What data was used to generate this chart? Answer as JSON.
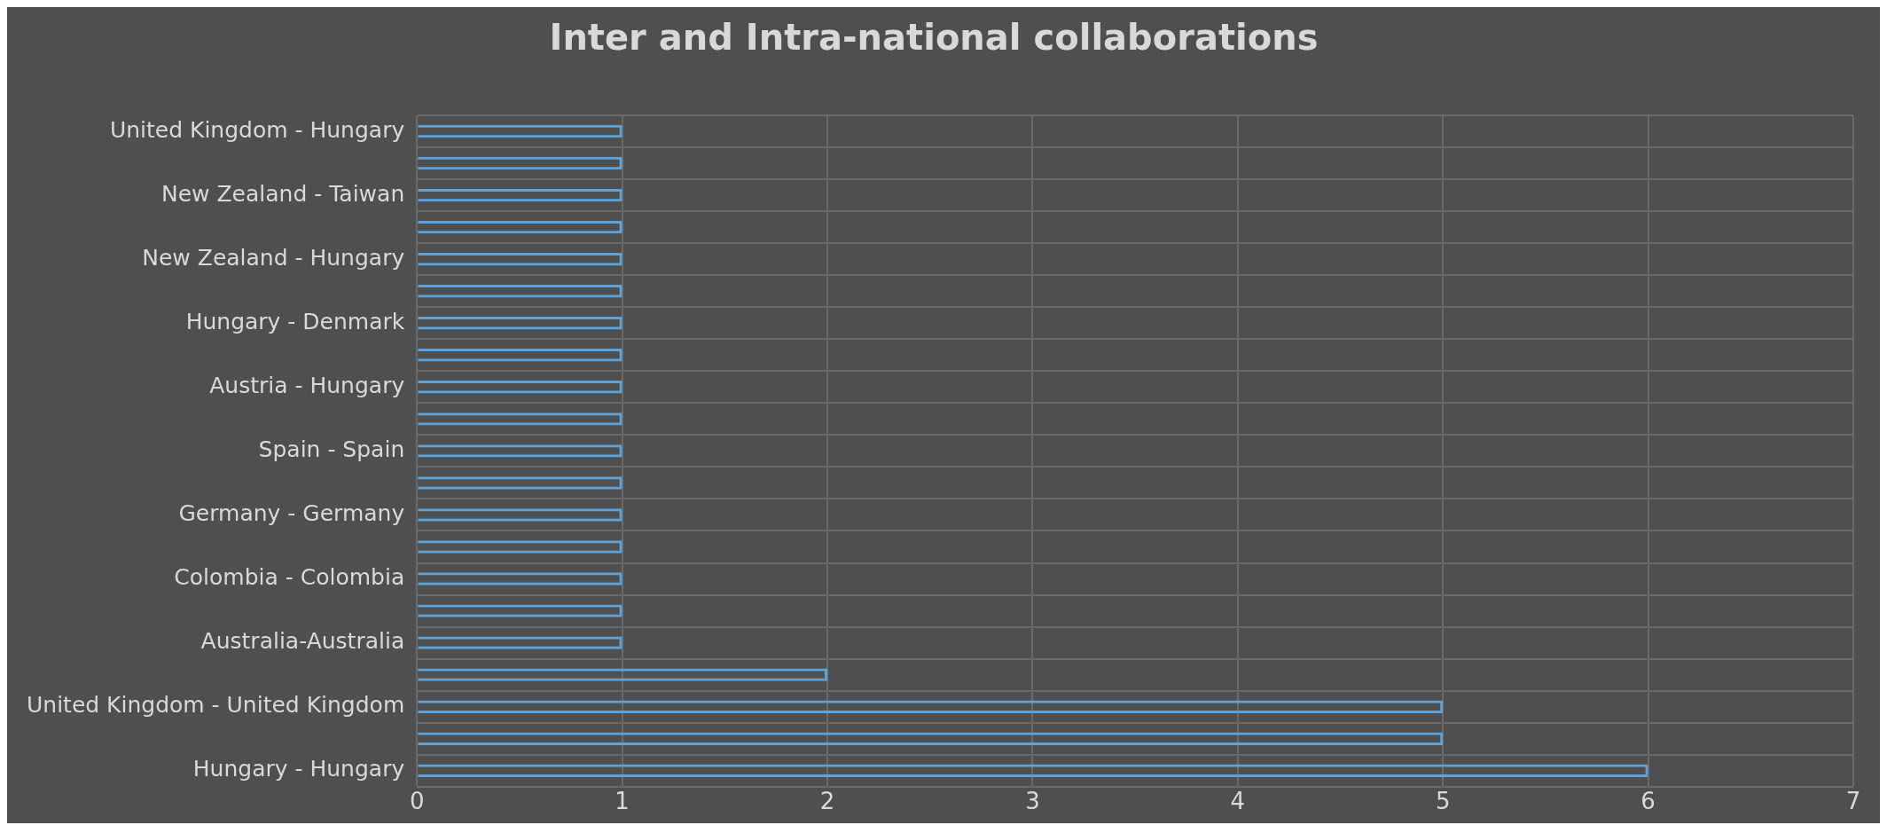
{
  "chart_data": {
    "type": "bar",
    "orientation": "horizontal",
    "title": "Inter and Intra-national collaborations",
    "categories": [
      "United Kingdom - Hungary",
      null,
      "New Zealand - Taiwan",
      null,
      "New Zealand - Hungary",
      null,
      "Hungary - Denmark",
      null,
      "Austria - Hungary",
      null,
      "Spain - Spain",
      null,
      "Germany - Germany",
      null,
      "Colombia - Colombia",
      null,
      "Australia-Australia",
      null,
      "United Kingdom - United Kingdom",
      null,
      "Hungary - Hungary"
    ],
    "values": [
      1,
      1,
      1,
      1,
      1,
      1,
      1,
      1,
      1,
      1,
      1,
      1,
      1,
      1,
      1,
      1,
      1,
      2,
      5,
      5,
      6
    ],
    "color": "#5ba3dc",
    "xlim": [
      0,
      7
    ],
    "xticks": [
      0,
      1,
      2,
      3,
      4,
      5,
      6,
      7
    ],
    "grid": true,
    "legend": false
  }
}
